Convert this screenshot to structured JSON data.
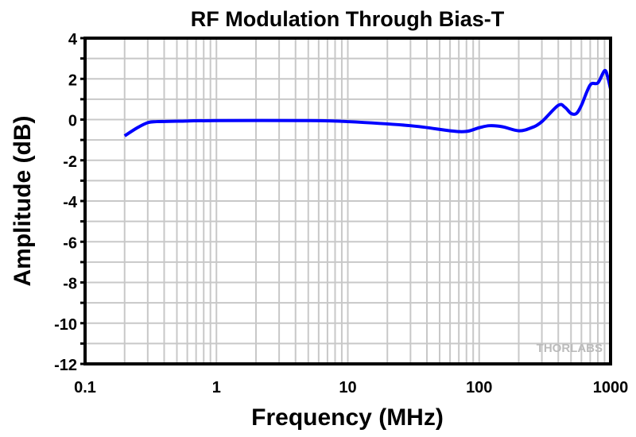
{
  "chart_data": {
    "type": "line",
    "title": "RF Modulation Through Bias-T",
    "xlabel": "Frequency (MHz)",
    "ylabel": "Amplitude (dB)",
    "xscale": "log",
    "xlim": [
      0.1,
      1000
    ],
    "ylim": [
      -12,
      4
    ],
    "xticks": [
      {
        "v": 0.1,
        "label": "0.1"
      },
      {
        "v": 1,
        "label": "1"
      },
      {
        "v": 10,
        "label": "10"
      },
      {
        "v": 100,
        "label": "100"
      },
      {
        "v": 1000,
        "label": "1000"
      }
    ],
    "yticks": [
      4,
      2,
      0,
      -2,
      -4,
      -6,
      -8,
      -10,
      -12
    ],
    "grid": true,
    "watermark": "THORLABS",
    "series": [
      {
        "name": "Amplitude",
        "color": "#0000ff",
        "x": [
          0.2,
          0.25,
          0.3,
          0.35,
          0.5,
          1,
          5,
          10,
          30,
          60,
          80,
          100,
          120,
          150,
          200,
          250,
          300,
          400,
          450,
          500,
          550,
          600,
          700,
          800,
          900,
          950,
          1000
        ],
        "y": [
          -0.8,
          -0.4,
          -0.15,
          -0.1,
          -0.08,
          -0.05,
          -0.05,
          -0.1,
          -0.3,
          -0.55,
          -0.58,
          -0.4,
          -0.3,
          -0.35,
          -0.55,
          -0.4,
          -0.1,
          0.7,
          0.6,
          0.3,
          0.3,
          0.7,
          1.7,
          1.8,
          2.4,
          2.1,
          1.5
        ]
      }
    ]
  }
}
